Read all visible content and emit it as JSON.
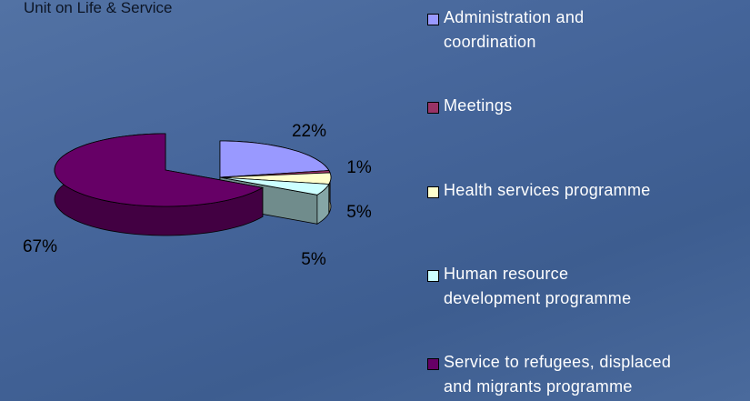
{
  "chart_data": {
    "type": "pie3d",
    "title": "Unit on Life & Service",
    "categories": [
      "Administration and coordination",
      "Meetings",
      "Health services programme",
      "Human resource development programme",
      "Service to refugees, displaced and migrants programme"
    ],
    "values": [
      22,
      1,
      5,
      5,
      67
    ],
    "value_labels": [
      "22%",
      "1%",
      "5%",
      "5%",
      "67%"
    ],
    "colors": [
      "#9999ff",
      "#993366",
      "#ffffcc",
      "#ccffff",
      "#660066"
    ],
    "legend": "right"
  }
}
